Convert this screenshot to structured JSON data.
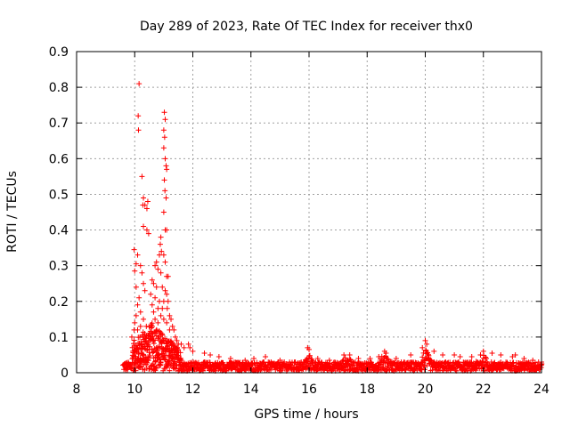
{
  "chart_data": {
    "type": "scatter",
    "title": "Day 289 of 2023, Rate Of TEC Index for receiver thx0",
    "xlabel": "GPS time / hours",
    "ylabel": "ROTI / TECUs",
    "xlim": [
      8,
      24
    ],
    "ylim": [
      0,
      0.9
    ],
    "xticks": [
      8,
      10,
      12,
      14,
      16,
      18,
      20,
      22,
      24
    ],
    "yticks": [
      0,
      0.1,
      0.2,
      0.3,
      0.4,
      0.5,
      0.6,
      0.7,
      0.8,
      0.9
    ],
    "xtick_labels": [
      "8",
      "10",
      "12",
      "14",
      "16",
      "18",
      "20",
      "22",
      "24"
    ],
    "ytick_labels": [
      "0",
      "0.1",
      "0.2",
      "0.3",
      "0.4",
      "0.5",
      "0.6",
      "0.7",
      "0.8",
      "0.9"
    ],
    "grid": true,
    "marker": "+",
    "color": "#ff0000",
    "series": [
      {
        "name": "ROTI",
        "points": [
          [
            10.15,
            0.81
          ],
          [
            10.12,
            0.72
          ],
          [
            10.13,
            0.68
          ],
          [
            10.25,
            0.55
          ],
          [
            10.3,
            0.49
          ],
          [
            10.35,
            0.47
          ],
          [
            10.28,
            0.47
          ],
          [
            10.45,
            0.48
          ],
          [
            10.42,
            0.46
          ],
          [
            10.3,
            0.41
          ],
          [
            10.42,
            0.4
          ],
          [
            10.48,
            0.39
          ],
          [
            9.98,
            0.345
          ],
          [
            10.1,
            0.33
          ],
          [
            10.05,
            0.305
          ],
          [
            10.2,
            0.3
          ],
          [
            10.25,
            0.28
          ],
          [
            10.3,
            0.25
          ],
          [
            10.0,
            0.285
          ],
          [
            10.05,
            0.24
          ],
          [
            10.35,
            0.23
          ],
          [
            10.15,
            0.21
          ],
          [
            10.1,
            0.19
          ],
          [
            10.2,
            0.17
          ],
          [
            10.05,
            0.16
          ],
          [
            10.0,
            0.14
          ],
          [
            9.98,
            0.12
          ],
          [
            10.1,
            0.12
          ],
          [
            10.2,
            0.13
          ],
          [
            10.3,
            0.15
          ],
          [
            10.4,
            0.13
          ],
          [
            10.5,
            0.11
          ],
          [
            9.9,
            0.1
          ],
          [
            11.02,
            0.73
          ],
          [
            11.05,
            0.71
          ],
          [
            11.0,
            0.68
          ],
          [
            11.03,
            0.66
          ],
          [
            11.0,
            0.63
          ],
          [
            11.05,
            0.6
          ],
          [
            11.08,
            0.58
          ],
          [
            11.1,
            0.57
          ],
          [
            11.02,
            0.54
          ],
          [
            11.04,
            0.51
          ],
          [
            11.08,
            0.49
          ],
          [
            11.0,
            0.45
          ],
          [
            11.05,
            0.4
          ],
          [
            11.1,
            0.4
          ],
          [
            10.9,
            0.38
          ],
          [
            10.88,
            0.36
          ],
          [
            10.92,
            0.34
          ],
          [
            10.85,
            0.33
          ],
          [
            11.0,
            0.33
          ],
          [
            11.05,
            0.31
          ],
          [
            10.75,
            0.31
          ],
          [
            10.7,
            0.3
          ],
          [
            10.8,
            0.29
          ],
          [
            10.9,
            0.28
          ],
          [
            11.1,
            0.27
          ],
          [
            11.15,
            0.27
          ],
          [
            10.6,
            0.26
          ],
          [
            10.65,
            0.25
          ],
          [
            10.75,
            0.24
          ],
          [
            10.95,
            0.24
          ],
          [
            11.05,
            0.23
          ],
          [
            11.1,
            0.22
          ],
          [
            10.55,
            0.22
          ],
          [
            10.7,
            0.21
          ],
          [
            10.85,
            0.2
          ],
          [
            11.0,
            0.2
          ],
          [
            11.15,
            0.2
          ],
          [
            10.6,
            0.19
          ],
          [
            10.8,
            0.18
          ],
          [
            10.95,
            0.18
          ],
          [
            11.12,
            0.18
          ],
          [
            10.65,
            0.17
          ],
          [
            10.9,
            0.16
          ],
          [
            11.2,
            0.16
          ],
          [
            10.7,
            0.15
          ],
          [
            11.0,
            0.15
          ],
          [
            11.25,
            0.15
          ],
          [
            10.8,
            0.14
          ],
          [
            11.1,
            0.14
          ],
          [
            11.3,
            0.13
          ],
          [
            10.6,
            0.13
          ],
          [
            11.2,
            0.12
          ],
          [
            11.35,
            0.12
          ],
          [
            10.75,
            0.12
          ],
          [
            11.4,
            0.1
          ],
          [
            11.45,
            0.09
          ],
          [
            11.5,
            0.08
          ],
          [
            11.6,
            0.08
          ],
          [
            11.7,
            0.07
          ],
          [
            11.85,
            0.08
          ],
          [
            11.9,
            0.07
          ],
          [
            12.0,
            0.06
          ],
          [
            12.4,
            0.055
          ],
          [
            12.6,
            0.05
          ],
          [
            12.9,
            0.045
          ],
          [
            13.3,
            0.04
          ],
          [
            13.8,
            0.035
          ],
          [
            14.1,
            0.04
          ],
          [
            14.5,
            0.045
          ],
          [
            15.0,
            0.035
          ],
          [
            15.5,
            0.03
          ],
          [
            15.95,
            0.07
          ],
          [
            16.0,
            0.065
          ],
          [
            16.3,
            0.04
          ],
          [
            16.7,
            0.035
          ],
          [
            17.2,
            0.05
          ],
          [
            17.4,
            0.05
          ],
          [
            17.7,
            0.04
          ],
          [
            18.1,
            0.04
          ],
          [
            18.4,
            0.045
          ],
          [
            18.6,
            0.06
          ],
          [
            18.65,
            0.055
          ],
          [
            19.0,
            0.04
          ],
          [
            19.5,
            0.05
          ],
          [
            19.9,
            0.07
          ],
          [
            20.0,
            0.09
          ],
          [
            20.05,
            0.08
          ],
          [
            20.3,
            0.06
          ],
          [
            20.6,
            0.05
          ],
          [
            21.0,
            0.05
          ],
          [
            21.2,
            0.045
          ],
          [
            21.6,
            0.045
          ],
          [
            21.9,
            0.05
          ],
          [
            22.0,
            0.06
          ],
          [
            22.3,
            0.055
          ],
          [
            22.6,
            0.05
          ],
          [
            23.0,
            0.045
          ],
          [
            23.1,
            0.05
          ],
          [
            23.4,
            0.04
          ],
          [
            23.7,
            0.035
          ],
          [
            23.9,
            0.03
          ],
          [
            24.0,
            0.03
          ]
        ],
        "band": {
          "description": "dense cluster of points near the baseline",
          "x_start": 9.6,
          "x_end": 24.0,
          "baseline_y": [
            0.005,
            0.03
          ],
          "early_peak_y": 0.11
        }
      }
    ]
  }
}
